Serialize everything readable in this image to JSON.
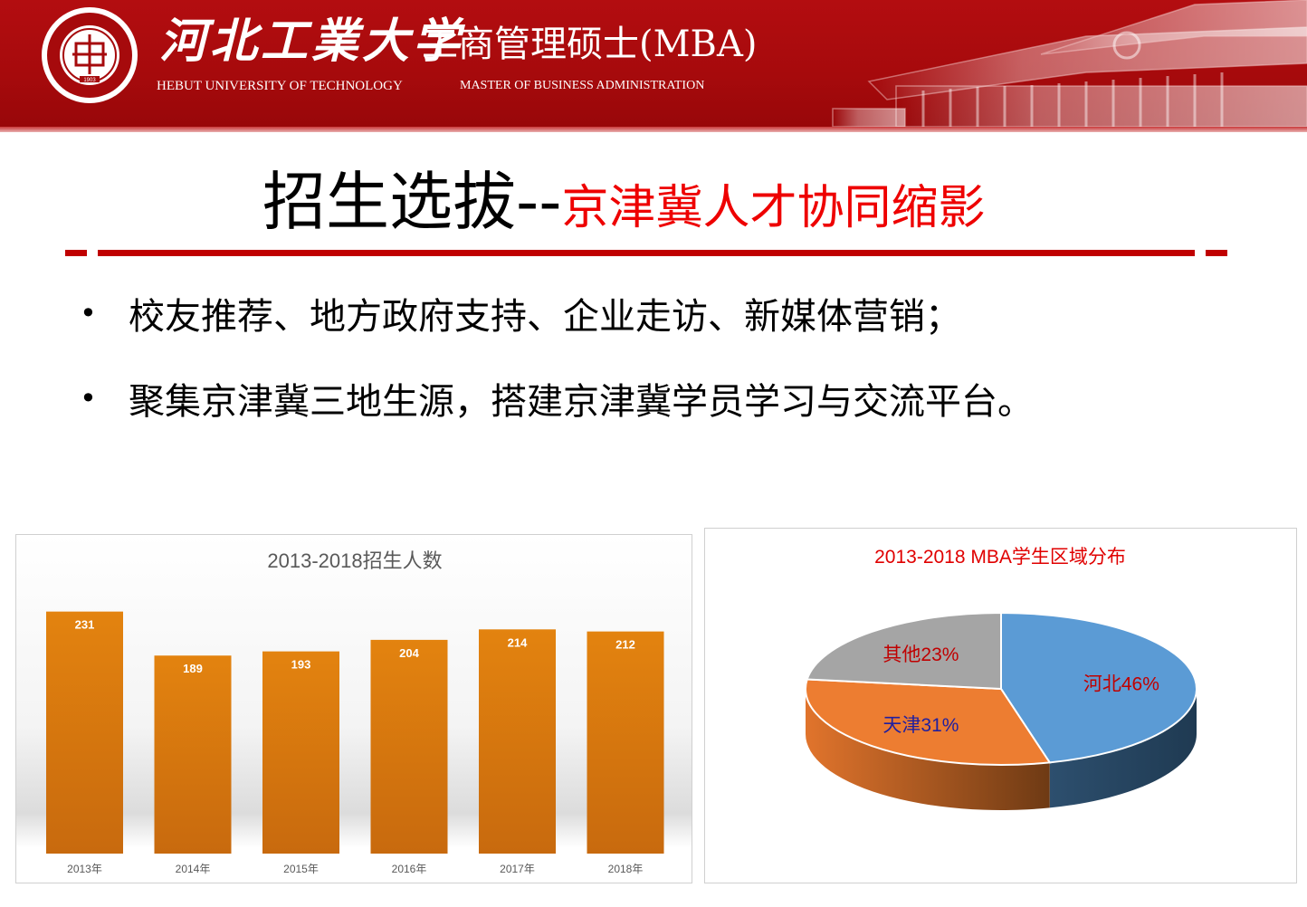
{
  "header": {
    "university_cn": "河北工業大学",
    "university_en": "HEBUT UNIVERSITY OF TECHNOLOGY",
    "program_cn": "工商管理硕士(MBA)",
    "program_en": "MASTER OF BUSINESS ADMINISTRATION",
    "seal_year": "1903"
  },
  "title": {
    "main": "招生选拔--",
    "sub": "京津冀人才协同缩影"
  },
  "bullets": [
    "校友推荐、地方政府支持、企业走访、新媒体营销；",
    "聚集京津冀三地生源，搭建京津冀学员学习与交流平台。"
  ],
  "bullet_symbol": "•",
  "colors": {
    "brand_red": "#a60a0c",
    "title_red": "#ee0000",
    "bar_orange": "#d8790f",
    "pie_hebei": "#5b9bd5",
    "pie_tianjin": "#ed7d31",
    "pie_other": "#a5a5a5"
  },
  "chart_data": [
    {
      "type": "bar",
      "title": "2013-2018招生人数",
      "categories": [
        "2013年",
        "2014年",
        "2015年",
        "2016年",
        "2017年",
        "2018年"
      ],
      "values": [
        231,
        189,
        193,
        204,
        214,
        212
      ],
      "data_labels": [
        "231",
        "189",
        "193",
        "204",
        "214",
        "212"
      ],
      "xlabel": "",
      "ylabel": "",
      "ylim": [
        0,
        235
      ],
      "grid": false,
      "legend": "none"
    },
    {
      "type": "pie",
      "title": "2013-2018 MBA学生区域分布",
      "categories": [
        "河北",
        "天津",
        "其他"
      ],
      "values": [
        46,
        31,
        23
      ],
      "data_labels": [
        "河北46%",
        "天津31%",
        "其他23%"
      ],
      "style": "3d",
      "legend": "none"
    }
  ]
}
